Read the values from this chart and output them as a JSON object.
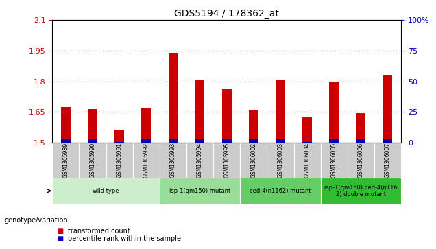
{
  "title": "GDS5194 / 178362_at",
  "samples": [
    "GSM1305989",
    "GSM1305990",
    "GSM1305991",
    "GSM1305992",
    "GSM1305993",
    "GSM1305994",
    "GSM1305995",
    "GSM1306002",
    "GSM1306003",
    "GSM1306004",
    "GSM1306005",
    "GSM1306006",
    "GSM1306007"
  ],
  "transformed_count": [
    1.675,
    1.663,
    1.565,
    1.668,
    1.938,
    1.808,
    1.763,
    1.658,
    1.807,
    1.628,
    1.8,
    1.645,
    1.828
  ],
  "percentile_rank_scaled": [
    0.02,
    0.018,
    0.005,
    0.018,
    0.022,
    0.022,
    0.018,
    0.018,
    0.018,
    0.005,
    0.018,
    0.018,
    0.02
  ],
  "ylim_left": [
    1.5,
    2.1
  ],
  "ylim_right": [
    0,
    100
  ],
  "yticks_left": [
    1.5,
    1.65,
    1.8,
    1.95,
    2.1
  ],
  "yticks_right": [
    0,
    25,
    50,
    75,
    100
  ],
  "bar_base": 1.5,
  "bar_color_red": "#cc0000",
  "bar_color_blue": "#0000bb",
  "bar_width": 0.35,
  "grid_color": "#000000",
  "genotype_groups": [
    {
      "label": "wild type",
      "start": 0,
      "end": 3,
      "color": "#cceecc"
    },
    {
      "label": "isp-1(qm150) mutant",
      "start": 4,
      "end": 6,
      "color": "#99dd99"
    },
    {
      "label": "ced-4(n1162) mutant",
      "start": 7,
      "end": 9,
      "color": "#66cc66"
    },
    {
      "label": "isp-1(qm150) ced-4(n116\n2) double mutant",
      "start": 10,
      "end": 12,
      "color": "#33bb33"
    }
  ],
  "legend_red": "transformed count",
  "legend_blue": "percentile rank within the sample",
  "genotype_label": "genotype/variation",
  "title_color": "#000000",
  "left_axis_color": "#cc0000",
  "right_axis_color": "#0000bb",
  "col_bg_color": "#cccccc",
  "plot_bg_color": "#ffffff"
}
